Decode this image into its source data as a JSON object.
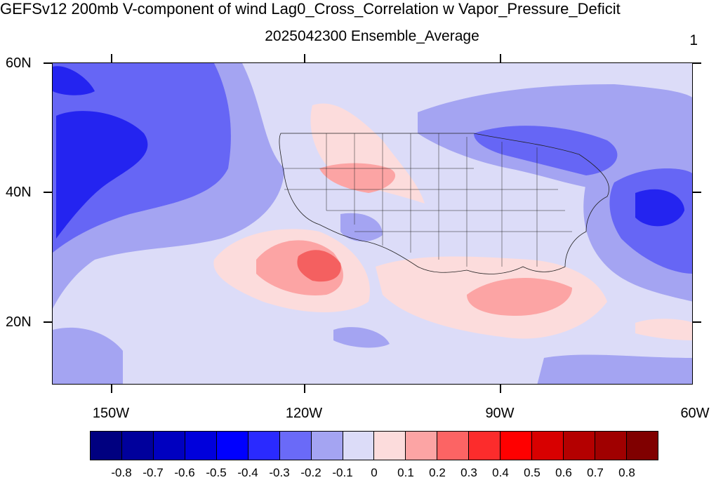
{
  "title": "GEFSv12 200mb V-component of wind Lag0_Cross_Correlation w Vapor_Pressure_Deficit",
  "subtitle": "2025042300 Ensemble_Average",
  "page_number": "1",
  "map": {
    "lat_labels": [
      "60N",
      "40N",
      "20N"
    ],
    "lon_labels": [
      "150W",
      "120W",
      "90W",
      "60W"
    ],
    "field_colors": {
      "deep_blue": "#2424f0",
      "blue": "#6666f5",
      "light_blue": "#a4a4f2",
      "pale_blue": "#dcdcf8",
      "pale_pink": "#fcdcdc",
      "pink": "#fca4a4",
      "red": "#f46060"
    }
  },
  "colorbar": {
    "labels": [
      "-0.8",
      "-0.7",
      "-0.6",
      "-0.5",
      "-0.4",
      "-0.3",
      "-0.2",
      "-0.1",
      "0",
      "0.1",
      "0.2",
      "0.3",
      "0.4",
      "0.5",
      "0.6",
      "0.7",
      "0.8"
    ],
    "colors": [
      "#000080",
      "#00009c",
      "#0000c0",
      "#0000dc",
      "#0000ff",
      "#2a2aff",
      "#6a6af8",
      "#a4a4f2",
      "#dcdcf8",
      "#fcdcdc",
      "#fca4a4",
      "#fc6464",
      "#fc2c2c",
      "#ff0000",
      "#d80000",
      "#b40000",
      "#a00000",
      "#800000"
    ]
  }
}
